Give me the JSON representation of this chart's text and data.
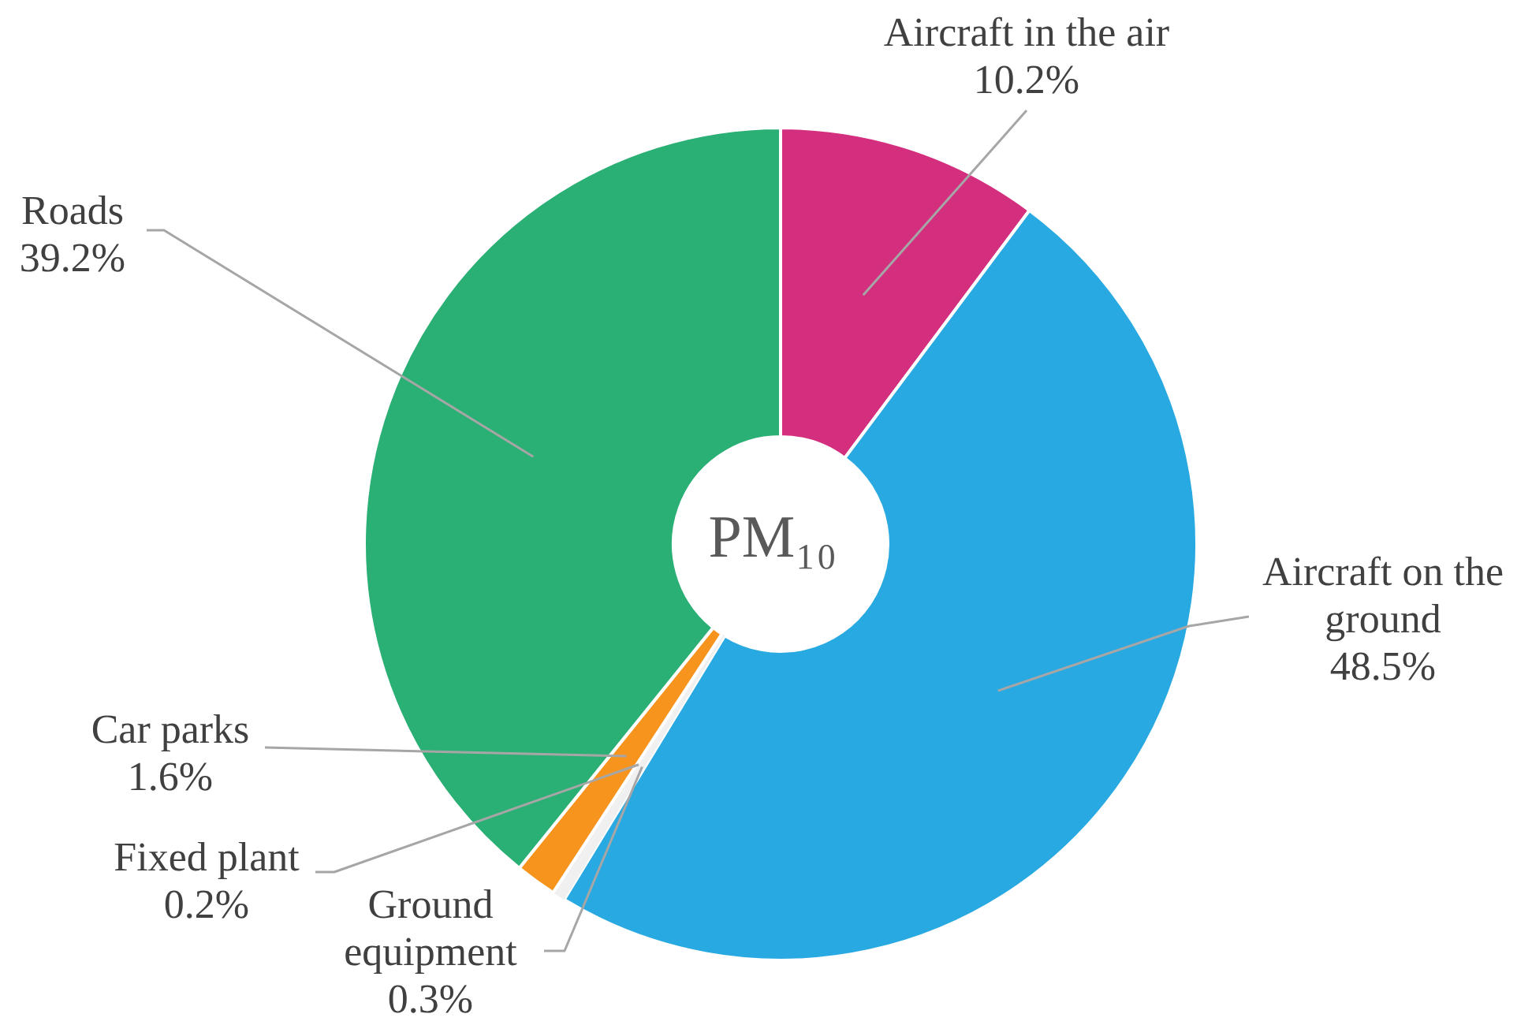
{
  "chart_data": {
    "type": "donut",
    "title": "PM₁₀",
    "categories": [
      "Aircraft in the air",
      "Aircraft on the ground",
      "Ground equipment",
      "Fixed plant",
      "Car parks",
      "Roads"
    ],
    "values": [
      10.2,
      48.5,
      0.3,
      0.2,
      1.6,
      39.2
    ],
    "value_labels": [
      "10.2%",
      "48.5%",
      "0.3%",
      "0.2%",
      "1.6%",
      "39.2%"
    ],
    "colors": [
      "#d42e7e",
      "#29a9e1",
      "#f0f0f0",
      "#f0f0f0",
      "#f7941d",
      "#2aaf74"
    ]
  }
}
